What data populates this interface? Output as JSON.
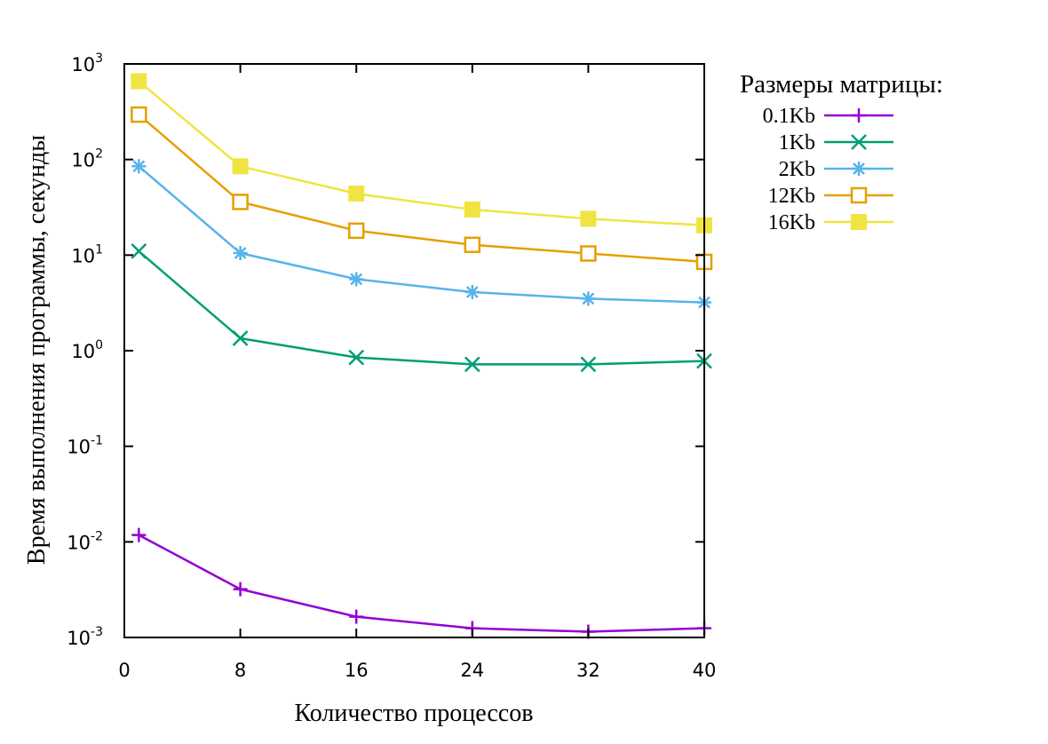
{
  "chart_data": {
    "type": "line",
    "title": "",
    "xlabel": "Количество процессов",
    "ylabel": "Время выполнения программы, секунды",
    "x_ticks": [
      0,
      8,
      16,
      24,
      32,
      40
    ],
    "y_ticks": [
      {
        "base": "10",
        "exp": "3"
      },
      {
        "base": "10",
        "exp": "2"
      },
      {
        "base": "10",
        "exp": "1"
      },
      {
        "base": "10",
        "exp": "0"
      },
      {
        "base": "10",
        "exp": "-1"
      },
      {
        "base": "10",
        "exp": "-2"
      },
      {
        "base": "10",
        "exp": "-3"
      }
    ],
    "xlim": [
      0,
      40
    ],
    "ylim": [
      0.001,
      1000
    ],
    "y_scale": "log",
    "grid": false,
    "legend_title": "Размеры матрицы:",
    "legend_position": "outside right",
    "x": [
      1,
      8,
      16,
      24,
      32,
      40
    ],
    "series": [
      {
        "name": "0.1Kb",
        "color": "#9400d3",
        "marker": "plus",
        "values": [
          0.0118,
          0.0032,
          0.00165,
          0.00125,
          0.00115,
          0.00125
        ]
      },
      {
        "name": "1Kb",
        "color": "#009e73",
        "marker": "cross",
        "values": [
          11,
          1.35,
          0.85,
          0.72,
          0.72,
          0.78
        ]
      },
      {
        "name": "2Kb",
        "color": "#56b4e9",
        "marker": "star",
        "values": [
          85,
          10.5,
          5.6,
          4.1,
          3.5,
          3.2
        ]
      },
      {
        "name": "12Kb",
        "color": "#e69f00",
        "marker": "open-square",
        "values": [
          295,
          36,
          18,
          12.8,
          10.4,
          8.5
        ]
      },
      {
        "name": "16Kb",
        "color": "#f0e442",
        "marker": "filled-square",
        "values": [
          660,
          85,
          44,
          30,
          24,
          20.5
        ]
      }
    ]
  }
}
